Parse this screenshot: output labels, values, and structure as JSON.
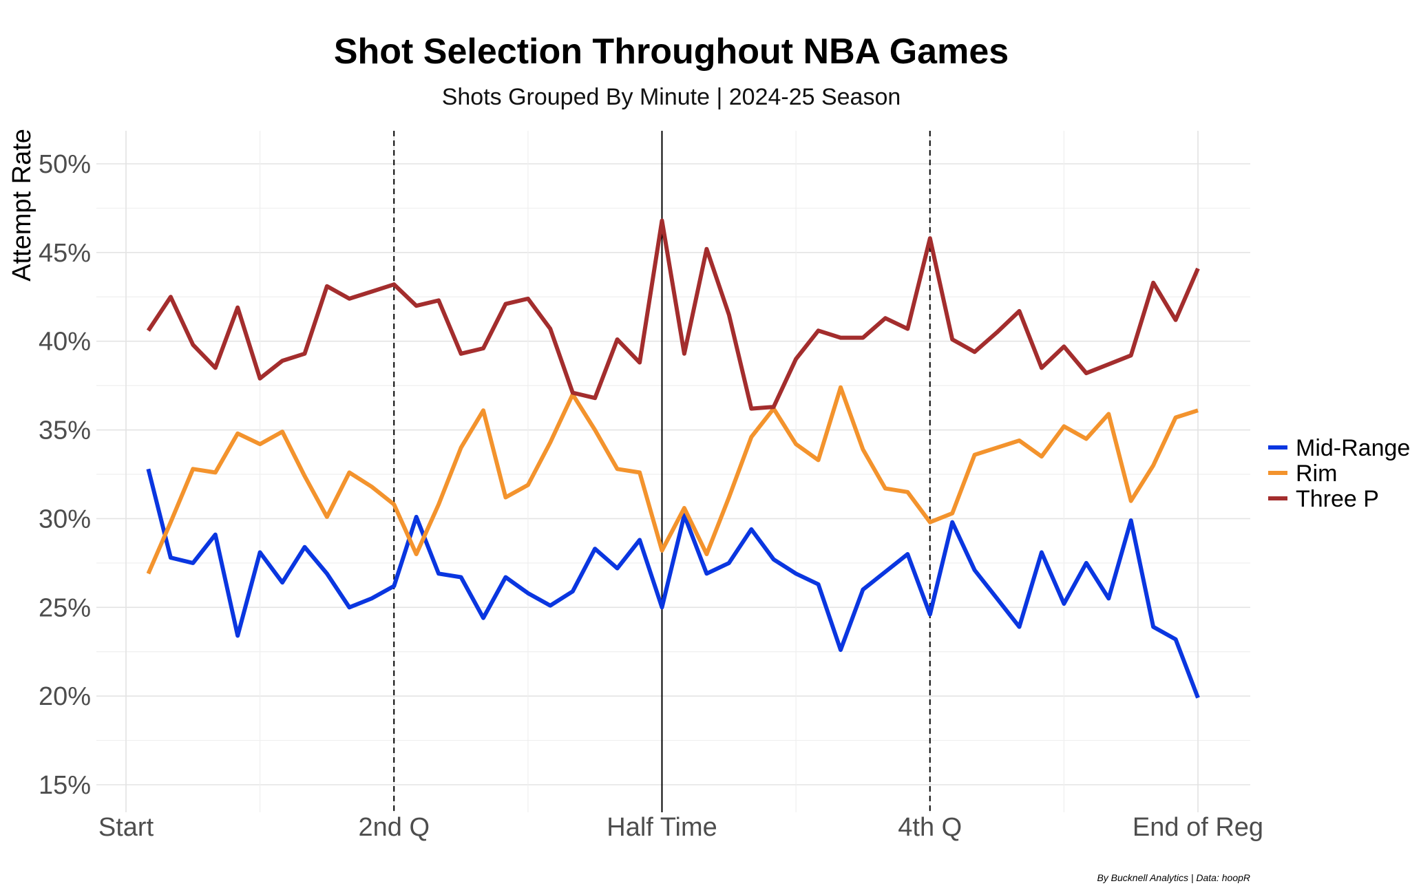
{
  "chart_data": {
    "type": "line",
    "title": "Shot Selection Throughout NBA Games",
    "subtitle": "Shots Grouped By Minute | 2024-25 Season",
    "xlabel": "",
    "ylabel": "Attempt Rate",
    "caption": "By Bucknell Analytics | Data: hoopR",
    "x": [
      1,
      2,
      3,
      4,
      5,
      6,
      7,
      8,
      9,
      10,
      11,
      12,
      13,
      14,
      15,
      16,
      17,
      18,
      19,
      20,
      21,
      22,
      23,
      24,
      25,
      26,
      27,
      28,
      29,
      30,
      31,
      32,
      33,
      34,
      35,
      36,
      37,
      38,
      39,
      40,
      41,
      42,
      43,
      44,
      45,
      46,
      47,
      48
    ],
    "xlim": [
      0,
      48
    ],
    "x_ticks": [
      {
        "value": 0,
        "label": "Start"
      },
      {
        "value": 12,
        "label": "2nd Q"
      },
      {
        "value": 24,
        "label": "Half Time"
      },
      {
        "value": 36,
        "label": "4th Q"
      },
      {
        "value": 48,
        "label": "End of Reg"
      }
    ],
    "ylim": [
      14,
      52
    ],
    "y_ticks": [
      {
        "value": 15,
        "label": "15%"
      },
      {
        "value": 20,
        "label": "20%"
      },
      {
        "value": 25,
        "label": "25%"
      },
      {
        "value": 30,
        "label": "30%"
      },
      {
        "value": 35,
        "label": "35%"
      },
      {
        "value": 40,
        "label": "40%"
      },
      {
        "value": 45,
        "label": "45%"
      },
      {
        "value": 50,
        "label": "50%"
      }
    ],
    "reference_lines": [
      {
        "x": 12,
        "style": "dashed"
      },
      {
        "x": 24,
        "style": "solid"
      },
      {
        "x": 36,
        "style": "dashed"
      }
    ],
    "grid": true,
    "legend": "right",
    "series": [
      {
        "name": "Mid-Range",
        "color": "#0a36e0",
        "values": [
          32.8,
          27.8,
          27.5,
          29.1,
          23.4,
          28.1,
          26.4,
          28.4,
          26.9,
          25.0,
          25.5,
          26.2,
          30.1,
          26.9,
          26.7,
          24.4,
          26.7,
          25.8,
          25.1,
          25.9,
          28.3,
          27.2,
          28.8,
          25.0,
          30.2,
          26.9,
          27.5,
          29.4,
          27.7,
          26.9,
          26.3,
          22.6,
          26.0,
          27.0,
          28.0,
          24.6,
          29.8,
          27.1,
          25.5,
          23.9,
          28.1,
          25.2,
          27.5,
          25.5,
          29.9,
          23.9,
          23.2,
          19.9
        ]
      },
      {
        "name": "Rim",
        "color": "#f3932d",
        "values": [
          26.9,
          29.8,
          32.8,
          32.6,
          34.8,
          34.2,
          34.9,
          32.4,
          30.1,
          32.6,
          31.8,
          30.8,
          28.0,
          30.8,
          34.0,
          36.1,
          31.2,
          31.9,
          34.3,
          37.0,
          35.0,
          32.8,
          32.6,
          28.2,
          30.6,
          28.0,
          31.2,
          34.6,
          36.2,
          34.2,
          33.3,
          37.4,
          33.9,
          31.7,
          31.5,
          29.8,
          30.3,
          33.6,
          34.0,
          34.4,
          33.5,
          35.2,
          34.5,
          35.9,
          31.0,
          33.0,
          35.7,
          36.1
        ]
      },
      {
        "name": "Three P",
        "color": "#a32d2d",
        "values": [
          40.6,
          42.5,
          39.8,
          38.5,
          41.9,
          37.9,
          38.9,
          39.3,
          43.1,
          42.4,
          42.8,
          43.2,
          42.0,
          42.3,
          39.3,
          39.6,
          42.1,
          42.4,
          40.7,
          37.1,
          36.8,
          40.1,
          38.8,
          46.8,
          39.3,
          45.2,
          41.5,
          36.2,
          36.3,
          39.0,
          40.6,
          40.2,
          40.2,
          41.3,
          40.7,
          45.8,
          40.1,
          39.4,
          40.5,
          41.7,
          38.5,
          39.7,
          38.2,
          38.7,
          39.2,
          43.3,
          41.2,
          44.1
        ]
      }
    ]
  }
}
